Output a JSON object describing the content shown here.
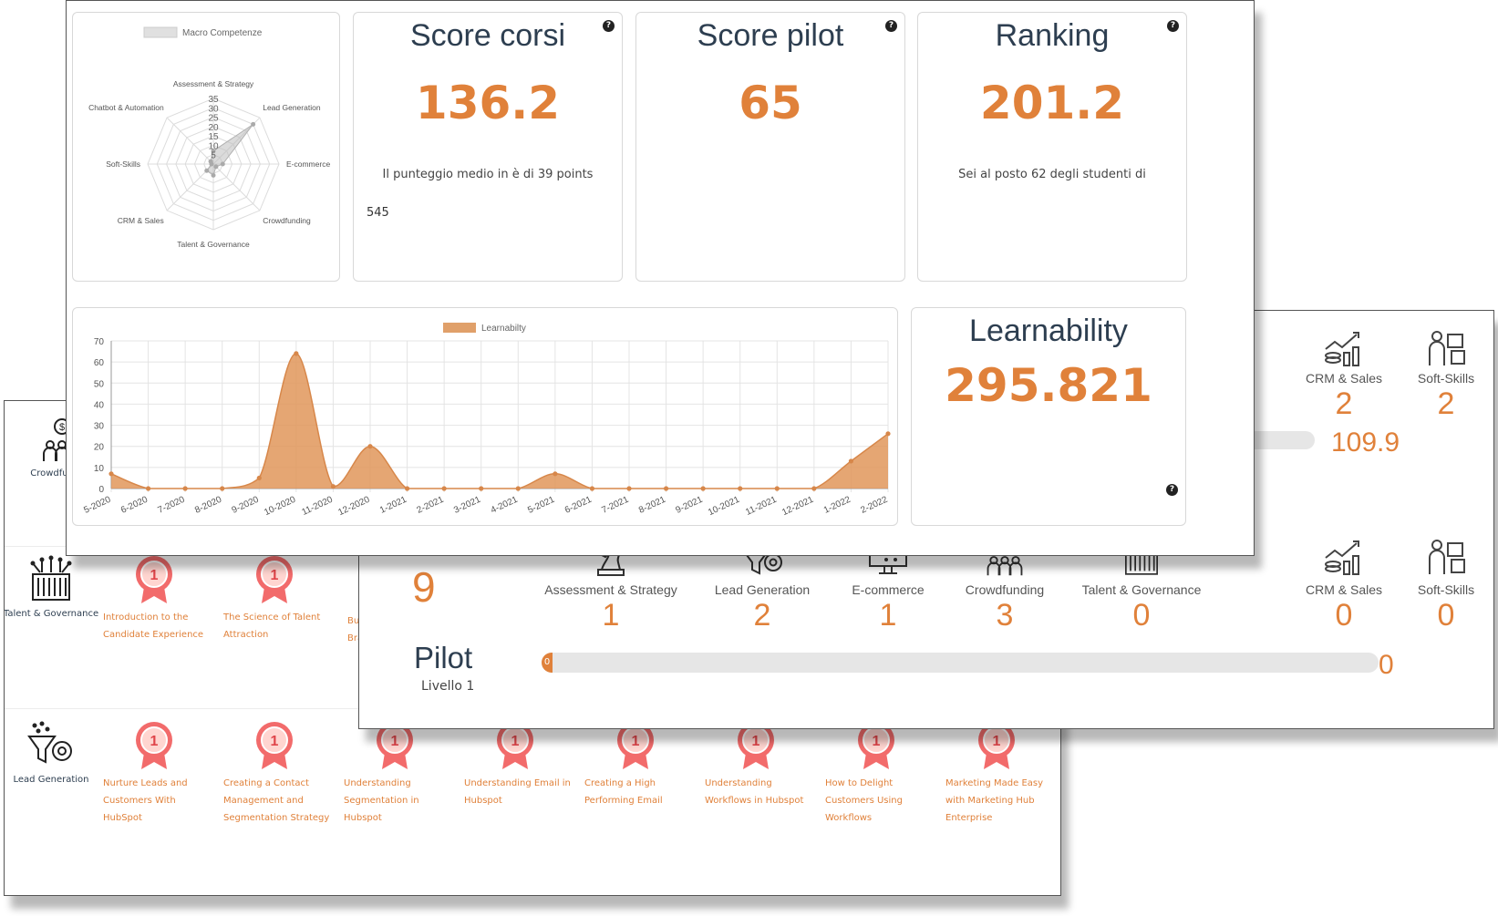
{
  "back_panel": {
    "rows": [
      {
        "category": "Crowdfunding",
        "icon": "crowdfunding-icon",
        "badges": []
      },
      {
        "category": "Talent & Governance",
        "icon": "talent-governance-icon",
        "badges": [
          "Introduction to the Candidate Experience",
          "The Science of Talent Attraction",
          "Bu... Bra..."
        ]
      },
      {
        "category": "Lead Generation",
        "icon": "lead-generation-icon",
        "badges": [
          "Nurture Leads and Customers With HubSpot",
          "Creating a Contact Management and Segmentation Strategy",
          "Understanding Segmentation in Hubspot",
          "Understanding Email in Hubspot",
          "Creating a High Performing Email",
          "Understanding Workflows in Hubspot",
          "How to Delight Customers Using Workflows",
          "Marketing Made Easy with Marketing Hub Enterprise"
        ]
      }
    ],
    "badge_number": "1"
  },
  "mid_panel": {
    "top_cats": [
      {
        "label": "CRM & Sales",
        "value": "2",
        "icon": "crm-sales-icon"
      },
      {
        "label": "Soft-Skills",
        "value": "2",
        "icon": "soft-skills-icon"
      }
    ],
    "top_progress_value": "109.9",
    "level_value": "9",
    "cats": [
      {
        "label": "Assessment & Strategy",
        "value": "1",
        "icon": "chess-knight-icon"
      },
      {
        "label": "Lead Generation",
        "value": "2",
        "icon": "lead-generation-icon"
      },
      {
        "label": "E-commerce",
        "value": "1",
        "icon": "ecommerce-icon"
      },
      {
        "label": "Crowdfunding",
        "value": "3",
        "icon": "crowdfunding-icon"
      },
      {
        "label": "Talent & Governance",
        "value": "0",
        "icon": "talent-governance-icon"
      },
      {
        "label": "CRM & Sales",
        "value": "0",
        "icon": "crm-sales-icon"
      },
      {
        "label": "Soft-Skills",
        "value": "0",
        "icon": "soft-skills-icon"
      }
    ],
    "pilot": {
      "title": "Pilot",
      "level": "Livello 1",
      "bar_marker": "0",
      "value": "0"
    }
  },
  "front_panel": {
    "score_corsi": {
      "title": "Score corsi",
      "value": "136.2",
      "desc": "Il punteggio medio in è di 39 points",
      "extra": "545"
    },
    "score_pilot": {
      "title": "Score pilot",
      "value": "65"
    },
    "ranking": {
      "title": "Ranking",
      "value": "201.2",
      "desc": "Sei al posto 62 degli studenti di"
    },
    "learnability": {
      "title": "Learnability",
      "value": "295.821"
    },
    "help_symbol": "?"
  },
  "chart_data": [
    {
      "type": "radar",
      "title": "",
      "legend": [
        "Macro Competenze"
      ],
      "legend_position": "top",
      "categories": [
        "Assessment & Strategy",
        "Lead Generation",
        "E-commerce",
        "Crowdfunding",
        "Talent & Governance",
        "CRM & Sales",
        "Soft-Skills",
        "Chatbot & Automation"
      ],
      "values": [
        7,
        30,
        5,
        2,
        6,
        5,
        1,
        2
      ],
      "rlim": [
        0,
        35
      ],
      "ticks": [
        "5",
        "10",
        "15",
        "20",
        "25",
        "30",
        "35"
      ],
      "color": "#cccccc"
    },
    {
      "type": "area",
      "title": "",
      "legend": [
        "Learnabilty"
      ],
      "legend_position": "top",
      "categories": [
        "5-2020",
        "6-2020",
        "7-2020",
        "8-2020",
        "9-2020",
        "10-2020",
        "11-2020",
        "12-2020",
        "1-2021",
        "2-2021",
        "3-2021",
        "4-2021",
        "5-2021",
        "6-2021",
        "7-2021",
        "8-2021",
        "9-2021",
        "10-2021",
        "11-2021",
        "12-2021",
        "1-2022",
        "2-2022"
      ],
      "values": [
        7,
        0,
        0,
        0,
        5,
        64,
        1,
        20,
        0,
        0,
        0,
        0,
        7,
        0,
        0,
        0,
        0,
        0,
        0,
        0,
        13,
        26
      ],
      "ylim": [
        0,
        70
      ],
      "yticks": [
        "0",
        "10",
        "20",
        "30",
        "40",
        "50",
        "60",
        "70"
      ],
      "color": "#e0a06a"
    }
  ]
}
